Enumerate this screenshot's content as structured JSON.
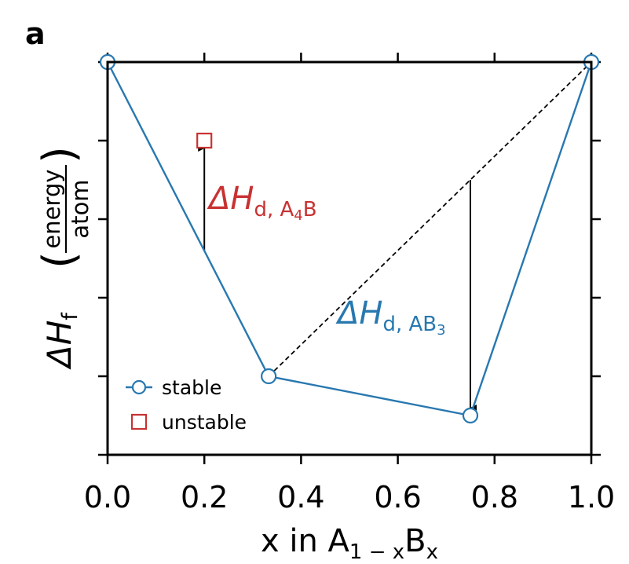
{
  "panel_label": "a",
  "chart_data": {
    "type": "line",
    "xlabel": {
      "main": "x in A",
      "sub1": "1 − x",
      "main2": "B",
      "sub2": "x"
    },
    "ylabel": {
      "main": "ΔH",
      "sub": "f",
      "frac_num": "energy",
      "frac_den": "atom"
    },
    "xlim": [
      0.0,
      1.0
    ],
    "ylim": [
      -5,
      0
    ],
    "x_ticks": [
      0.0,
      0.2,
      0.4,
      0.6,
      0.8,
      1.0
    ],
    "x_tick_labels": [
      "0.0",
      "0.2",
      "0.4",
      "0.6",
      "0.8",
      "1.0"
    ],
    "y_ticks": [
      -5,
      -4,
      -3,
      -2,
      -1,
      0
    ],
    "y_tick_labels": [
      "",
      "",
      "",
      "",
      "",
      ""
    ],
    "grid": false,
    "colors": {
      "stable": "#2878b0",
      "unstable": "#c83232",
      "hull_tie": "#000000"
    },
    "series": [
      {
        "name": "stable",
        "marker": "circle",
        "x": [
          0.0,
          0.333,
          0.75,
          1.0
        ],
        "y": [
          0.0,
          -4.0,
          -4.5,
          0.0
        ]
      },
      {
        "name": "unstable",
        "marker": "square",
        "x": [
          0.2
        ],
        "y": [
          -1.0
        ]
      }
    ],
    "tie_line": {
      "x": [
        0.333,
        1.0
      ],
      "y": [
        -4.0,
        0.0
      ]
    },
    "annotations": [
      {
        "main": "ΔH",
        "sub": "d, A",
        "sub_sub": "4",
        "sub_tail": "B",
        "color": "#c83232",
        "arrow_from": [
          0.2,
          -2.4
        ],
        "arrow_to": [
          0.2,
          -1.1
        ]
      },
      {
        "main": "ΔH",
        "sub": "d, AB",
        "sub_sub": "3",
        "sub_tail": "",
        "color": "#2878b0",
        "arrow_from": [
          0.75,
          -1.5
        ],
        "arrow_to": [
          0.75,
          -4.4
        ]
      }
    ],
    "legend": {
      "placement": "lower-left",
      "entries": [
        {
          "label": "stable",
          "marker": "circle",
          "color": "#2878b0"
        },
        {
          "label": "unstable",
          "marker": "square",
          "color": "#c83232"
        }
      ]
    }
  }
}
